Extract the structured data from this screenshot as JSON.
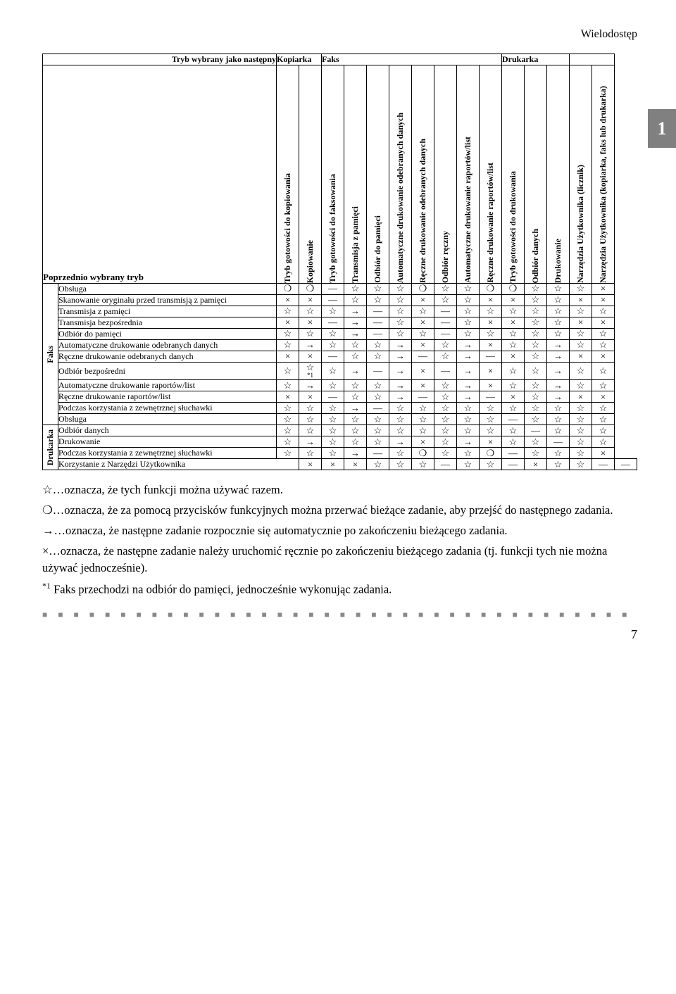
{
  "header_title": "Wielodostęp",
  "chapter_number": "1",
  "top_label": "Tryb wybrany jako następny",
  "left_label": "Poprzednio wybrany tryb",
  "column_groups": [
    "Kopiarka",
    "Faks",
    "Drukarka",
    ""
  ],
  "group_spans": [
    2,
    8,
    3,
    2
  ],
  "columns": [
    "Tryb gotowości do kopiowania",
    "Kopiowanie",
    "Tryb gotowości do faksowania",
    "Transmisja z pamięci",
    "Odbiór do pamięci",
    "Automatyczne drukowanie odebranych danych",
    "Ręczne drukowanie odebranych danych",
    "Odbiór ręczny",
    "Automatyczne drukowanie raportów/list",
    "Ręczne drukowanie raportów/list",
    "Tryb gotowości do drukowania",
    "Odbiór danych",
    "Drukowanie",
    "Narzędzia Użytkownika (licznik)",
    "Narzędzia Użytkownika (kopiarka, faks lub drukarka)"
  ],
  "side_groups": [
    {
      "label": "Faks",
      "from": 0,
      "to": 11
    },
    {
      "label": "Drukarka",
      "from": 12,
      "to": 15
    }
  ],
  "rows": [
    {
      "name": "Obsługa",
      "cells": [
        "○",
        "○",
        "—",
        "☆",
        "☆",
        "☆",
        "○",
        "☆",
        "☆",
        "○",
        "○",
        "☆",
        "☆",
        "☆",
        "×"
      ]
    },
    {
      "name": "Skanowanie oryginału przed transmisją z pamięci",
      "cells": [
        "×",
        "×",
        "—",
        "☆",
        "☆",
        "☆",
        "×",
        "☆",
        "☆",
        "×",
        "×",
        "☆",
        "☆",
        "×",
        "×"
      ]
    },
    {
      "name": "Transmisja z pamięci",
      "cells": [
        "☆",
        "☆",
        "☆",
        "→",
        "—",
        "☆",
        "☆",
        "—",
        "☆",
        "☆",
        "☆",
        "☆",
        "☆",
        "☆",
        "☆"
      ]
    },
    {
      "name": "Transmisja bezpośrednia",
      "cells": [
        "×",
        "×",
        "—",
        "→",
        "—",
        "☆",
        "×",
        "—",
        "☆",
        "×",
        "×",
        "☆",
        "☆",
        "×",
        "×"
      ]
    },
    {
      "name": "Odbiór do pamięci",
      "cells": [
        "☆",
        "☆",
        "☆",
        "→",
        "—",
        "☆",
        "☆",
        "—",
        "☆",
        "☆",
        "☆",
        "☆",
        "☆",
        "☆",
        "☆"
      ]
    },
    {
      "name": "Automatyczne drukowanie odebranych danych",
      "cells": [
        "☆",
        "→",
        "☆",
        "☆",
        "☆",
        "→",
        "×",
        "☆",
        "→",
        "×",
        "☆",
        "☆",
        "→",
        "☆",
        "☆"
      ]
    },
    {
      "name": "Ręczne drukowanie odebranych danych",
      "cells": [
        "×",
        "×",
        "—",
        "☆",
        "☆",
        "→",
        "—",
        "☆",
        "→",
        "—",
        "×",
        "☆",
        "→",
        "×",
        "×"
      ]
    },
    {
      "name": "Odbiór bezpośredni",
      "cells": [
        "☆",
        "☆*1",
        "☆",
        "→",
        "—",
        "→",
        "×",
        "—",
        "→",
        "×",
        "☆",
        "☆",
        "→",
        "☆",
        "☆"
      ]
    },
    {
      "name": "Automatyczne drukowanie raportów/list",
      "cells": [
        "☆",
        "→",
        "☆",
        "☆",
        "☆",
        "→",
        "×",
        "☆",
        "→",
        "×",
        "☆",
        "☆",
        "→",
        "☆",
        "☆"
      ]
    },
    {
      "name": "Ręczne drukowanie raportów/list",
      "cells": [
        "×",
        "×",
        "—",
        "☆",
        "☆",
        "→",
        "—",
        "☆",
        "→",
        "—",
        "×",
        "☆",
        "→",
        "×",
        "×"
      ]
    },
    {
      "name": "Podczas korzystania z zewnętrznej słuchawki",
      "cells": [
        "☆",
        "☆",
        "☆",
        "→",
        "—",
        "☆",
        "☆",
        "☆",
        "☆",
        "☆",
        "☆",
        "☆",
        "☆",
        "☆",
        "☆"
      ]
    },
    {
      "name": "Obsługa",
      "cells": [
        "☆",
        "☆",
        "☆",
        "☆",
        "☆",
        "☆",
        "☆",
        "☆",
        "☆",
        "☆",
        "—",
        "☆",
        "☆",
        "☆",
        "☆"
      ]
    },
    {
      "name": "Odbiór danych",
      "cells": [
        "☆",
        "☆",
        "☆",
        "☆",
        "☆",
        "☆",
        "☆",
        "☆",
        "☆",
        "☆",
        "☆",
        "—",
        "☆",
        "☆",
        "☆"
      ]
    },
    {
      "name": "Drukowanie",
      "cells": [
        "☆",
        "→",
        "☆",
        "☆",
        "☆",
        "→",
        "×",
        "☆",
        "→",
        "×",
        "☆",
        "☆",
        "—",
        "☆",
        "☆"
      ]
    },
    {
      "name": "Podczas korzystania z zewnętrznej słuchawki",
      "cells": [
        "☆",
        "☆",
        "☆",
        "→",
        "—",
        "☆",
        "○",
        "☆",
        "☆",
        "○",
        "—",
        "☆",
        "☆",
        "☆",
        "×"
      ]
    },
    {
      "name": "Korzystanie z Narzędzi Użytkownika",
      "fullwidth": true,
      "cells": [
        "×",
        "×",
        "×",
        "☆",
        "☆",
        "☆",
        "—",
        "☆",
        "☆",
        "—",
        "×",
        "☆",
        "☆",
        "—",
        "—"
      ]
    }
  ],
  "legend": [
    "☆…oznacza, że tych funkcji można używać razem.",
    "○…oznacza, że za pomocą przycisków funkcyjnych można przerwać bieżące zadanie, aby przejść do następnego zadania.",
    "→…oznacza, że następne zadanie rozpocznie się automatycznie po zakończeniu bieżącego zadania.",
    "×…oznacza, że następne zadanie należy uruchomić ręcznie po zakończeniu bieżącego zadania (tj. funkcji tych nie można używać jednocześnie)."
  ],
  "footnote": {
    "mark": "*1",
    "text": "Faks przechodzi na odbiór do pamięci, jednocześnie wykonując zadania."
  },
  "page_number": "7",
  "symbols": {
    "star": "☆",
    "circle": "❍",
    "arrow": "→",
    "cross": "×",
    "dash": "—"
  }
}
